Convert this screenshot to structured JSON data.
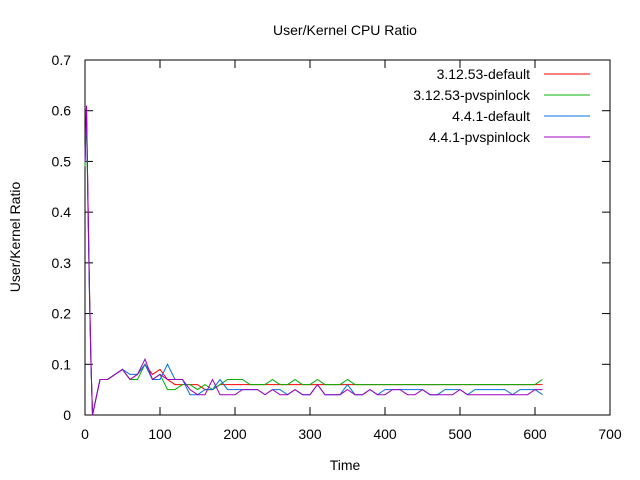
{
  "chart_data": {
    "type": "line",
    "title": "User/Kernel CPU Ratio",
    "xlabel": "Time",
    "ylabel": "User/Kernel Ratio",
    "xlim": [
      0,
      700
    ],
    "ylim": [
      0,
      0.7
    ],
    "xticks": [
      0,
      100,
      200,
      300,
      400,
      500,
      600,
      700
    ],
    "yticks": [
      0,
      0.1,
      0.2,
      0.3,
      0.4,
      0.5,
      0.6,
      0.7
    ],
    "xtick_labels": [
      "0",
      "100",
      "200",
      "300",
      "400",
      "500",
      "600",
      "700"
    ],
    "ytick_labels": [
      "0",
      "0.1",
      "0.2",
      "0.3",
      "0.4",
      "0.5",
      "0.6",
      "0.7"
    ],
    "grid": false,
    "legend_position": "top-right",
    "series": [
      {
        "name": "3.12.53-default",
        "color": "#ff0000",
        "x": [
          0,
          2,
          4,
          6,
          8,
          10,
          20,
          30,
          40,
          50,
          60,
          70,
          80,
          90,
          100,
          110,
          120,
          130,
          140,
          150,
          160,
          170,
          180,
          190,
          200,
          210,
          220,
          230,
          240,
          250,
          260,
          270,
          280,
          290,
          300,
          310,
          320,
          330,
          340,
          350,
          360,
          370,
          380,
          390,
          400,
          410,
          420,
          430,
          440,
          450,
          460,
          470,
          480,
          490,
          500,
          510,
          520,
          530,
          540,
          550,
          560,
          570,
          580,
          590,
          600,
          610
        ],
        "y": [
          0.5,
          0.6,
          0.42,
          0.25,
          0.1,
          0.0,
          0.07,
          0.07,
          0.08,
          0.09,
          0.07,
          0.08,
          0.1,
          0.08,
          0.09,
          0.07,
          0.06,
          0.06,
          0.06,
          0.06,
          0.05,
          0.05,
          0.06,
          0.06,
          0.06,
          0.06,
          0.06,
          0.06,
          0.06,
          0.06,
          0.06,
          0.06,
          0.06,
          0.06,
          0.06,
          0.06,
          0.06,
          0.06,
          0.06,
          0.06,
          0.06,
          0.06,
          0.06,
          0.06,
          0.06,
          0.06,
          0.06,
          0.06,
          0.06,
          0.06,
          0.06,
          0.06,
          0.06,
          0.06,
          0.06,
          0.06,
          0.06,
          0.06,
          0.06,
          0.06,
          0.06,
          0.06,
          0.06,
          0.06,
          0.06,
          0.06
        ]
      },
      {
        "name": "3.12.53-pvspinlock",
        "color": "#00b000",
        "x": [
          0,
          2,
          4,
          6,
          8,
          10,
          20,
          30,
          40,
          50,
          60,
          70,
          80,
          90,
          100,
          110,
          120,
          130,
          140,
          150,
          160,
          170,
          180,
          190,
          200,
          210,
          220,
          230,
          240,
          250,
          260,
          270,
          280,
          290,
          300,
          310,
          320,
          330,
          340,
          350,
          360,
          370,
          380,
          390,
          400,
          410,
          420,
          430,
          440,
          450,
          460,
          470,
          480,
          490,
          500,
          510,
          520,
          530,
          540,
          550,
          560,
          570,
          580,
          590,
          600,
          610
        ],
        "y": [
          0.49,
          0.59,
          0.4,
          0.24,
          0.1,
          0.0,
          0.07,
          0.07,
          0.08,
          0.09,
          0.07,
          0.07,
          0.1,
          0.07,
          0.08,
          0.05,
          0.05,
          0.06,
          0.06,
          0.05,
          0.06,
          0.05,
          0.06,
          0.07,
          0.07,
          0.07,
          0.06,
          0.06,
          0.06,
          0.07,
          0.06,
          0.06,
          0.07,
          0.06,
          0.06,
          0.07,
          0.06,
          0.06,
          0.06,
          0.07,
          0.06,
          0.06,
          0.06,
          0.06,
          0.06,
          0.06,
          0.06,
          0.06,
          0.06,
          0.06,
          0.06,
          0.06,
          0.06,
          0.06,
          0.06,
          0.06,
          0.06,
          0.06,
          0.06,
          0.06,
          0.06,
          0.06,
          0.06,
          0.06,
          0.06,
          0.07
        ]
      },
      {
        "name": "4.4.1-default",
        "color": "#0070e0",
        "x": [
          0,
          2,
          4,
          6,
          8,
          10,
          20,
          30,
          40,
          50,
          60,
          70,
          80,
          90,
          100,
          110,
          120,
          130,
          140,
          150,
          160,
          170,
          180,
          190,
          200,
          210,
          220,
          230,
          240,
          250,
          260,
          270,
          280,
          290,
          300,
          310,
          320,
          330,
          340,
          350,
          360,
          370,
          380,
          390,
          400,
          410,
          420,
          430,
          440,
          450,
          460,
          470,
          480,
          490,
          500,
          510,
          520,
          530,
          540,
          550,
          560,
          570,
          580,
          590,
          600,
          610
        ],
        "y": [
          0.5,
          0.61,
          0.41,
          0.23,
          0.1,
          0.0,
          0.07,
          0.07,
          0.08,
          0.09,
          0.08,
          0.08,
          0.1,
          0.07,
          0.07,
          0.1,
          0.07,
          0.07,
          0.04,
          0.04,
          0.05,
          0.05,
          0.07,
          0.05,
          0.05,
          0.05,
          0.05,
          0.05,
          0.04,
          0.05,
          0.05,
          0.04,
          0.05,
          0.04,
          0.04,
          0.06,
          0.04,
          0.04,
          0.04,
          0.06,
          0.04,
          0.04,
          0.05,
          0.04,
          0.05,
          0.05,
          0.05,
          0.05,
          0.05,
          0.05,
          0.04,
          0.04,
          0.05,
          0.05,
          0.05,
          0.04,
          0.05,
          0.05,
          0.05,
          0.05,
          0.05,
          0.04,
          0.05,
          0.05,
          0.05,
          0.04
        ]
      },
      {
        "name": "4.4.1-pvspinlock",
        "color": "#a000c0",
        "x": [
          0,
          2,
          4,
          6,
          8,
          10,
          20,
          30,
          40,
          50,
          60,
          70,
          80,
          90,
          100,
          110,
          120,
          130,
          140,
          150,
          160,
          170,
          180,
          190,
          200,
          210,
          220,
          230,
          240,
          250,
          260,
          270,
          280,
          290,
          300,
          310,
          320,
          330,
          340,
          350,
          360,
          370,
          380,
          390,
          400,
          410,
          420,
          430,
          440,
          450,
          460,
          470,
          480,
          490,
          500,
          510,
          520,
          530,
          540,
          550,
          560,
          570,
          580,
          590,
          600,
          610
        ],
        "y": [
          0.5,
          0.61,
          0.42,
          0.24,
          0.1,
          0.0,
          0.07,
          0.07,
          0.08,
          0.09,
          0.07,
          0.08,
          0.11,
          0.07,
          0.08,
          0.07,
          0.07,
          0.07,
          0.05,
          0.04,
          0.04,
          0.07,
          0.04,
          0.04,
          0.04,
          0.05,
          0.05,
          0.05,
          0.04,
          0.05,
          0.04,
          0.04,
          0.05,
          0.04,
          0.04,
          0.06,
          0.04,
          0.04,
          0.04,
          0.05,
          0.04,
          0.04,
          0.05,
          0.04,
          0.04,
          0.05,
          0.05,
          0.04,
          0.04,
          0.05,
          0.04,
          0.04,
          0.04,
          0.04,
          0.05,
          0.04,
          0.04,
          0.04,
          0.04,
          0.04,
          0.04,
          0.04,
          0.04,
          0.04,
          0.05,
          0.05
        ]
      }
    ]
  }
}
